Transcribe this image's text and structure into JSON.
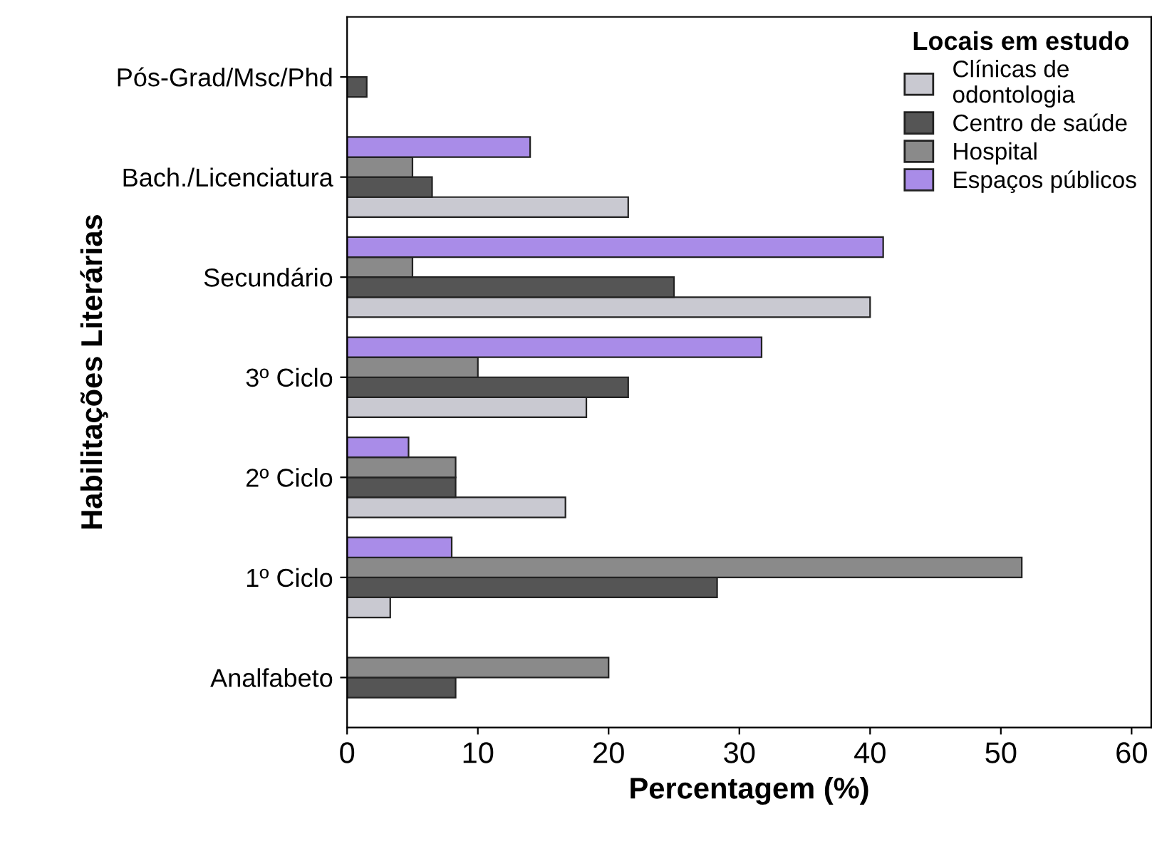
{
  "chart_data": {
    "type": "bar",
    "orientation": "horizontal",
    "xlabel": "Percentagem (%)",
    "ylabel": "Habilitações Literárias",
    "legend_title": "Locais em estudo",
    "legend": "top right",
    "grid": false,
    "categories": [
      "Pós-Grad/Msc/Phd",
      "Bach./Licenciatura",
      "Secundário",
      "3º Ciclo",
      "2º Ciclo",
      "1º Ciclo",
      "Analfabeto"
    ],
    "xlim": [
      0,
      61.5
    ],
    "xticks": [
      0,
      10,
      20,
      30,
      40,
      50,
      60
    ],
    "series": [
      {
        "name": "Clínicas de\nodontologia",
        "color": "#c9c9d1",
        "values": [
          null,
          21.5,
          40,
          18.3,
          16.7,
          3.3,
          null
        ]
      },
      {
        "name": "Centro de saúde",
        "color": "#555555",
        "values": [
          1.5,
          6.5,
          25,
          21.5,
          8.3,
          28.3,
          8.3
        ]
      },
      {
        "name": "Hospital",
        "color": "#8a8a8a",
        "values": [
          null,
          5,
          5,
          10,
          8.3,
          51.6,
          20
        ]
      },
      {
        "name": "Espaços públicos",
        "color": "#a98ce8",
        "values": [
          null,
          14,
          41,
          31.7,
          4.7,
          8,
          null
        ]
      }
    ]
  }
}
